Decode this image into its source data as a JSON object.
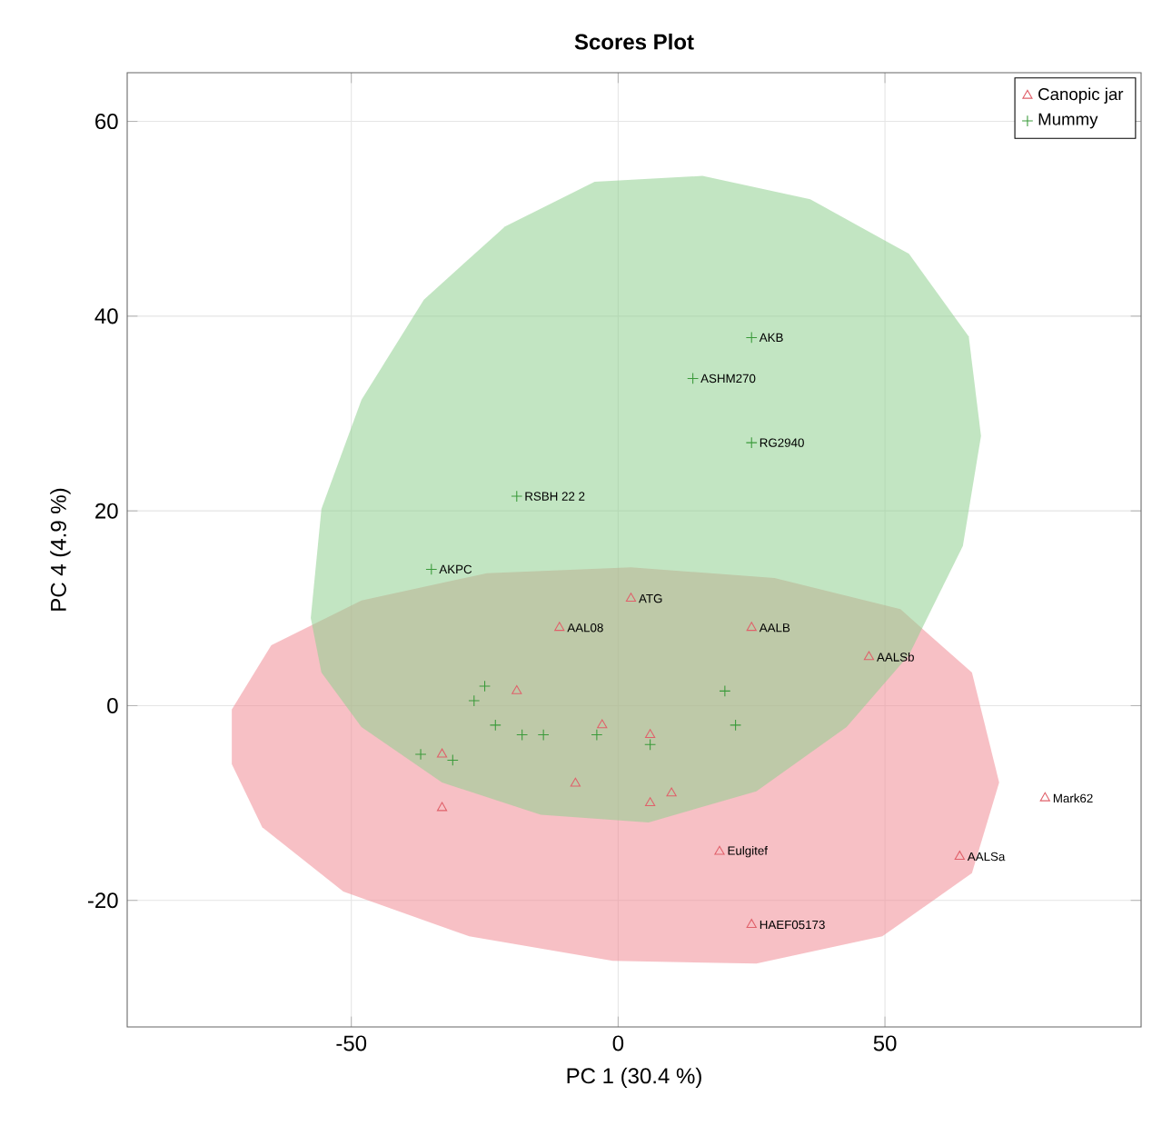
{
  "chart_data": {
    "type": "scatter",
    "title": "Scores Plot",
    "xlabel": "PC 1 (30.4 %)",
    "ylabel": "PC 4 (4.9 %)",
    "xlim": [
      -92,
      98
    ],
    "ylim": [
      -33,
      65
    ],
    "xticks": [
      -50,
      0,
      50
    ],
    "yticks": [
      -20,
      0,
      20,
      40,
      60
    ],
    "grid": true,
    "legend": "top right",
    "series": [
      {
        "type": "area",
        "color": "#f08c96",
        "x": [
          -72.4,
          -65,
          -48.1,
          -24.6,
          2.4,
          29.3,
          52.9,
          66.3,
          71.4,
          66.3,
          49.5,
          25.9,
          -1,
          -27.9,
          -51.5,
          -66.7,
          -72.4
        ],
        "values": [
          -0.4,
          6.2,
          10.8,
          13.6,
          14.2,
          13.1,
          9.9,
          3.4,
          -7.9,
          -17.2,
          -23.7,
          -26.5,
          -26.2,
          -23.7,
          -19.1,
          -12.5,
          -6.0
        ]
      },
      {
        "type": "area",
        "color": "#8fcf8f",
        "x": [
          -57.6,
          -55.6,
          -48.1,
          -36.4,
          -21.2,
          -4.4,
          15.8,
          36.0,
          54.5,
          65.7,
          68.0,
          64.6,
          54.5,
          42.8,
          25.9,
          5.7,
          -14.5,
          -33.0,
          -48.1,
          -55.6
        ],
        "values": [
          9.0,
          20.2,
          31.4,
          41.7,
          49.2,
          53.8,
          54.4,
          52.0,
          46.4,
          37.9,
          27.7,
          16.4,
          5.2,
          -2.2,
          -8.8,
          -12.0,
          -11.2,
          -7.9,
          -2.2,
          3.4
        ]
      },
      {
        "name": "Canopic jar",
        "marker": "triangle",
        "color": "#e0606a",
        "x": [
          2.4,
          -11,
          25,
          47,
          80,
          64,
          19,
          25,
          -33,
          6,
          -19,
          -3,
          6,
          -33,
          -8,
          10
        ],
        "values": [
          11,
          8,
          8,
          5,
          -9.5,
          -15.5,
          -15,
          -22.5,
          -10.5,
          -10,
          1.5,
          -2,
          -3,
          -5,
          -8,
          -9
        ]
      },
      {
        "name": "Mummy",
        "marker": "cross",
        "color": "#3a9a3a",
        "x": [
          25,
          14,
          25,
          -19,
          -35,
          20,
          22,
          -25,
          -27,
          -23,
          -18,
          -37,
          -31,
          -14,
          -4,
          6
        ],
        "values": [
          37.8,
          33.6,
          27,
          21.5,
          14,
          1.5,
          -2,
          2,
          0.5,
          -2,
          -3,
          -5,
          -5.6,
          -3,
          -3,
          -4
        ]
      }
    ],
    "annotations": [
      {
        "text": "AKB",
        "x": 25,
        "y": 37.8
      },
      {
        "text": "ASHM270",
        "x": 14,
        "y": 33.6
      },
      {
        "text": "RG2940",
        "x": 25,
        "y": 27
      },
      {
        "text": "RSBH 22 2",
        "x": -19,
        "y": 21.5
      },
      {
        "text": "AKPC",
        "x": -35,
        "y": 14
      },
      {
        "text": "ATG",
        "x": 2.4,
        "y": 11
      },
      {
        "text": "AAL08",
        "x": -11,
        "y": 8
      },
      {
        "text": "AALB",
        "x": 25,
        "y": 8
      },
      {
        "text": "AALSb",
        "x": 47,
        "y": 5
      },
      {
        "text": "Mark62",
        "x": 80,
        "y": -9.5
      },
      {
        "text": "AALSa",
        "x": 64,
        "y": -15.5
      },
      {
        "text": "Eulgitef",
        "x": 19,
        "y": -15
      },
      {
        "text": "HAEF05173",
        "x": 25,
        "y": -22.5
      }
    ]
  }
}
